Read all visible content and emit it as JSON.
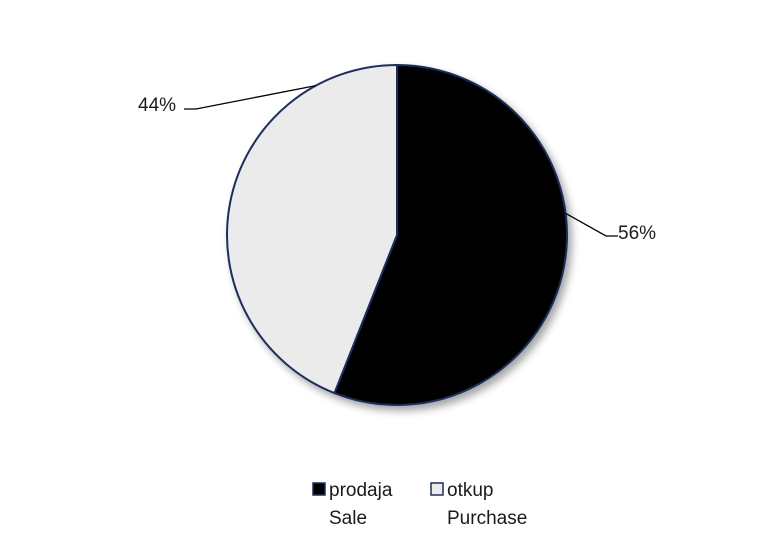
{
  "chart_data": {
    "type": "pie",
    "slices": [
      {
        "name": "prodaja",
        "name2": "Sale",
        "value": 56,
        "label": "56%",
        "color": "#000000"
      },
      {
        "name": "otkup",
        "name2": "Purchase",
        "value": 44,
        "label": "44%",
        "color": "#ebebeb"
      }
    ],
    "outline_color": "#1f2f5c",
    "legend_placement": "bottom"
  }
}
